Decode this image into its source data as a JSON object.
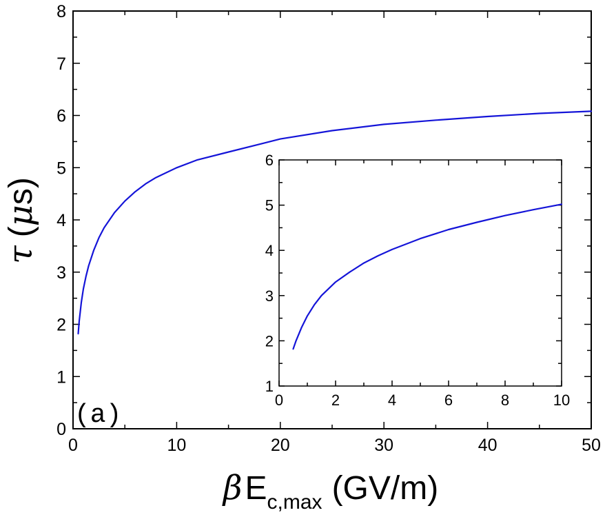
{
  "chart_data": [
    {
      "type": "line",
      "title": "",
      "panel_label": "(a)",
      "xlabel": {
        "symbol": "β",
        "main": "E",
        "subscript": "c,max",
        "unit": "(GV/m)"
      },
      "ylabel": {
        "symbol": "τ",
        "unit_prefix": "(",
        "mu": "μ",
        "unit_rest": "s)"
      },
      "xlim": [
        0,
        50
      ],
      "ylim": [
        0,
        8
      ],
      "xticks": [
        0,
        10,
        20,
        30,
        40,
        50
      ],
      "yticks": [
        0,
        1,
        2,
        3,
        4,
        5,
        6,
        7,
        8
      ],
      "grid": false,
      "line_color": "#1414d8",
      "series": [
        {
          "x": [
            0.5,
            0.6,
            0.8,
            1,
            1.25,
            1.5,
            2,
            2.5,
            3,
            4,
            5,
            6,
            7,
            8,
            10,
            12,
            15,
            20,
            25,
            30,
            35,
            40,
            45,
            50
          ],
          "y": [
            1.82,
            2.07,
            2.42,
            2.68,
            2.92,
            3.12,
            3.42,
            3.66,
            3.85,
            4.14,
            4.36,
            4.54,
            4.69,
            4.81,
            5.0,
            5.15,
            5.3,
            5.55,
            5.71,
            5.83,
            5.91,
            5.98,
            6.04,
            6.08
          ]
        }
      ]
    },
    {
      "type": "line",
      "title": "",
      "xlabel": "",
      "ylabel": "",
      "xlim": [
        0,
        10
      ],
      "ylim": [
        1,
        6
      ],
      "xticks": [
        0,
        2,
        4,
        6,
        8,
        10
      ],
      "yticks": [
        1,
        2,
        3,
        4,
        5,
        6
      ],
      "grid": false,
      "line_color": "#1414d8",
      "series": [
        {
          "x": [
            0.5,
            0.6,
            0.8,
            1,
            1.25,
            1.5,
            2,
            2.5,
            3,
            3.5,
            4,
            5,
            6,
            7,
            8,
            9,
            10
          ],
          "y": [
            1.82,
            2.0,
            2.3,
            2.55,
            2.8,
            3.0,
            3.3,
            3.52,
            3.72,
            3.88,
            4.02,
            4.26,
            4.46,
            4.62,
            4.77,
            4.9,
            5.02
          ]
        }
      ]
    }
  ]
}
